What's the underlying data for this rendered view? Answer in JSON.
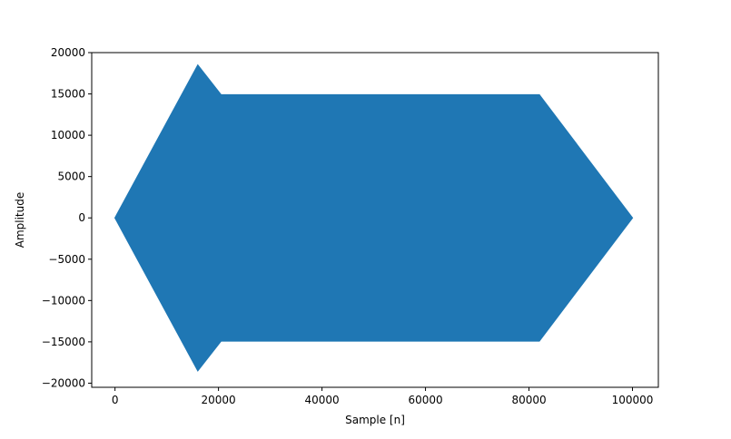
{
  "chart_data": {
    "type": "area",
    "title": "",
    "xlabel": "Sample [n]",
    "ylabel": "Amplitude",
    "xlim": [
      -4500,
      105000
    ],
    "ylim": [
      -20500,
      20000
    ],
    "grid": false,
    "legend": "none",
    "x_ticks": [
      0,
      20000,
      40000,
      60000,
      80000,
      100000
    ],
    "x_tick_labels": [
      "0",
      "20000",
      "40000",
      "60000",
      "80000",
      "100000"
    ],
    "y_ticks": [
      -20000,
      -15000,
      -10000,
      -5000,
      0,
      5000,
      10000,
      15000,
      20000
    ],
    "y_tick_labels": [
      "−20000",
      "−15000",
      "−10000",
      "−5000",
      "0",
      "5000",
      "10000",
      "15000",
      "20000"
    ],
    "series": [
      {
        "color": "#1f77b4",
        "envelope_x": [
          0,
          16000,
          20500,
          82000,
          100000
        ],
        "envelope_upper": [
          0,
          18500,
          14900,
          14900,
          0
        ],
        "envelope_lower": [
          0,
          -18500,
          -14900,
          -14900,
          0
        ]
      }
    ]
  }
}
